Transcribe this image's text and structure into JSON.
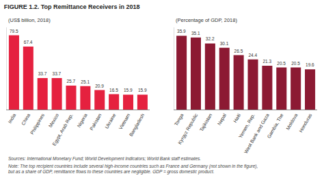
{
  "figure_title": "FIGURE 1.2. Top Remittance Receivers in 2018",
  "chart_data": [
    {
      "type": "bar",
      "title": "(US$ billion, 2018)",
      "categories": [
        "India",
        "China",
        "Philippines",
        "Mexico",
        "Egypt, Arab Rep.",
        "Nigeria",
        "Pakistan",
        "Ukraine",
        "Vietnam",
        "Bangladesh"
      ],
      "values": [
        79.5,
        67.4,
        33.7,
        33.7,
        25.7,
        25.1,
        20.9,
        16.5,
        15.9,
        15.9
      ],
      "color": "#e5213f",
      "ylim": [
        0,
        88
      ],
      "yticks": [],
      "grid": false,
      "data_labels": true,
      "tick_labels": "x"
    },
    {
      "type": "bar",
      "title": "(Percentage of GDP, 2018)",
      "categories": [
        "Tonga",
        "Kyrgyz Republic",
        "Tajikistan",
        "Nepal",
        "Haiti",
        "Yemen, Rep.",
        "West Bank and Gaza",
        "Gambia, The",
        "Moldova",
        "Honduras"
      ],
      "values": [
        35.9,
        35.1,
        32.2,
        30.1,
        26.5,
        24.4,
        21.3,
        20.5,
        20.5,
        19.6
      ],
      "color": "#8c1a33",
      "ylim": [
        0,
        40
      ],
      "yticks": [],
      "grid": false,
      "data_labels": true,
      "tick_labels": "x"
    }
  ],
  "sources": "Sources: International Monetary Fund; World Development Indicators; World Bank staff estimates.",
  "note": "Note: The top recipient countries include several high-income countries such as France and Germany (not shown in the figure), but as a share of GDP, remittance flows to these countries are negligible. GDP = gross domestic product."
}
